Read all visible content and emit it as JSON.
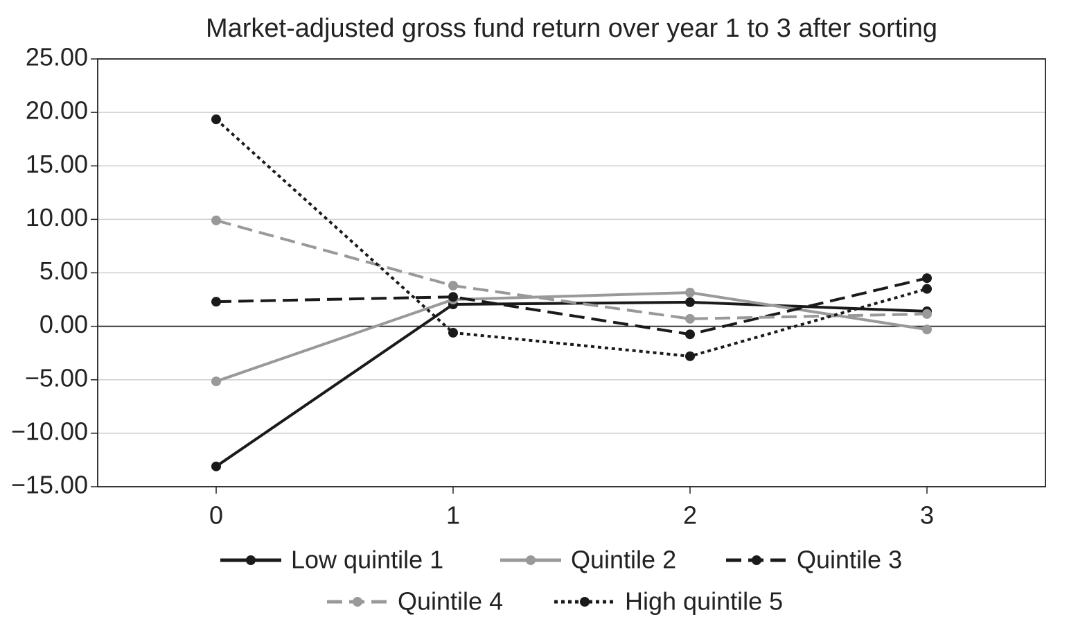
{
  "chart_data": {
    "type": "line",
    "title": "Market-adjusted gross fund return over year 1 to 3 after sorting",
    "x": [
      0,
      1,
      2,
      3
    ],
    "xlim": [
      -0.5,
      3.5
    ],
    "xticks": [
      0,
      1,
      2,
      3
    ],
    "ylim": [
      -15,
      25
    ],
    "yticks": [
      {
        "value": -15,
        "label": "−15.00"
      },
      {
        "value": -10,
        "label": "−10.00"
      },
      {
        "value": -5,
        "label": "−5.00"
      },
      {
        "value": 0,
        "label": "0.00"
      },
      {
        "value": 5,
        "label": "5.00"
      },
      {
        "value": 10,
        "label": "10.00"
      },
      {
        "value": 15,
        "label": "15.00"
      },
      {
        "value": 20,
        "label": "20.00"
      },
      {
        "value": 25,
        "label": "25.00"
      }
    ],
    "grid": true,
    "legend": "bottom",
    "series": [
      {
        "name": "Low quintile 1",
        "color": "#1a1a1a",
        "dash": "solid",
        "values": [
          -13.1,
          2.05,
          2.25,
          1.4
        ]
      },
      {
        "name": "Quintile 2",
        "color": "#999999",
        "dash": "solid",
        "values": [
          -5.15,
          2.5,
          3.15,
          -0.3
        ]
      },
      {
        "name": "Quintile 3",
        "color": "#1a1a1a",
        "dash": "dashed",
        "values": [
          2.3,
          2.75,
          -0.75,
          4.5
        ]
      },
      {
        "name": "Quintile 4",
        "color": "#999999",
        "dash": "dashed",
        "values": [
          9.9,
          3.8,
          0.7,
          1.15
        ]
      },
      {
        "name": "High quintile 5",
        "color": "#1a1a1a",
        "dash": "dotted",
        "values": [
          19.35,
          -0.6,
          -2.8,
          3.5
        ]
      }
    ]
  }
}
